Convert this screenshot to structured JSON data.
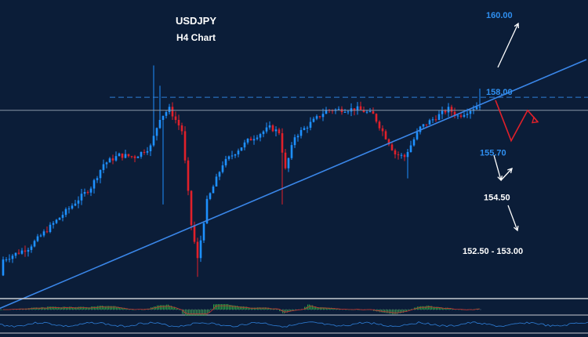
{
  "chart_data": {
    "type": "candlestick",
    "title": "USDJPY",
    "subtitle": "H4 Chart",
    "ylim": [
      151.05,
      161.36
    ],
    "colors": {
      "up": "#1e90ff",
      "down": "#e0202a",
      "background": "#0b1d38",
      "trendline": "#3a86e8",
      "resistance": "#2f7fd8",
      "path": "#e0202a",
      "arrows": "#ffffff",
      "label_blue": "#2f8ff0",
      "label_white": "#ffffff",
      "osc_green": "#2ea043",
      "osc_red": "#d02020"
    },
    "resistance_level": 158.0,
    "current_price": 157.55,
    "trendline": {
      "start_price": 151.45,
      "end_price": 157.65,
      "start_index": 15,
      "end_index": 150
    },
    "levels": [
      {
        "label": "160.00",
        "price": 160.85,
        "color": "label_blue"
      },
      {
        "label": "158.00",
        "price": 158.2,
        "color": "label_blue"
      },
      {
        "label": "155.70",
        "price": 156.1,
        "color": "label_blue"
      },
      {
        "label": "154.50",
        "price": 154.55,
        "color": "label_white"
      },
      {
        "label": "152.50 - 153.00",
        "price": 152.7,
        "color": "label_white"
      }
    ],
    "projection": [
      157.9,
      156.5,
      157.55,
      157.15
    ],
    "candles": []
  }
}
